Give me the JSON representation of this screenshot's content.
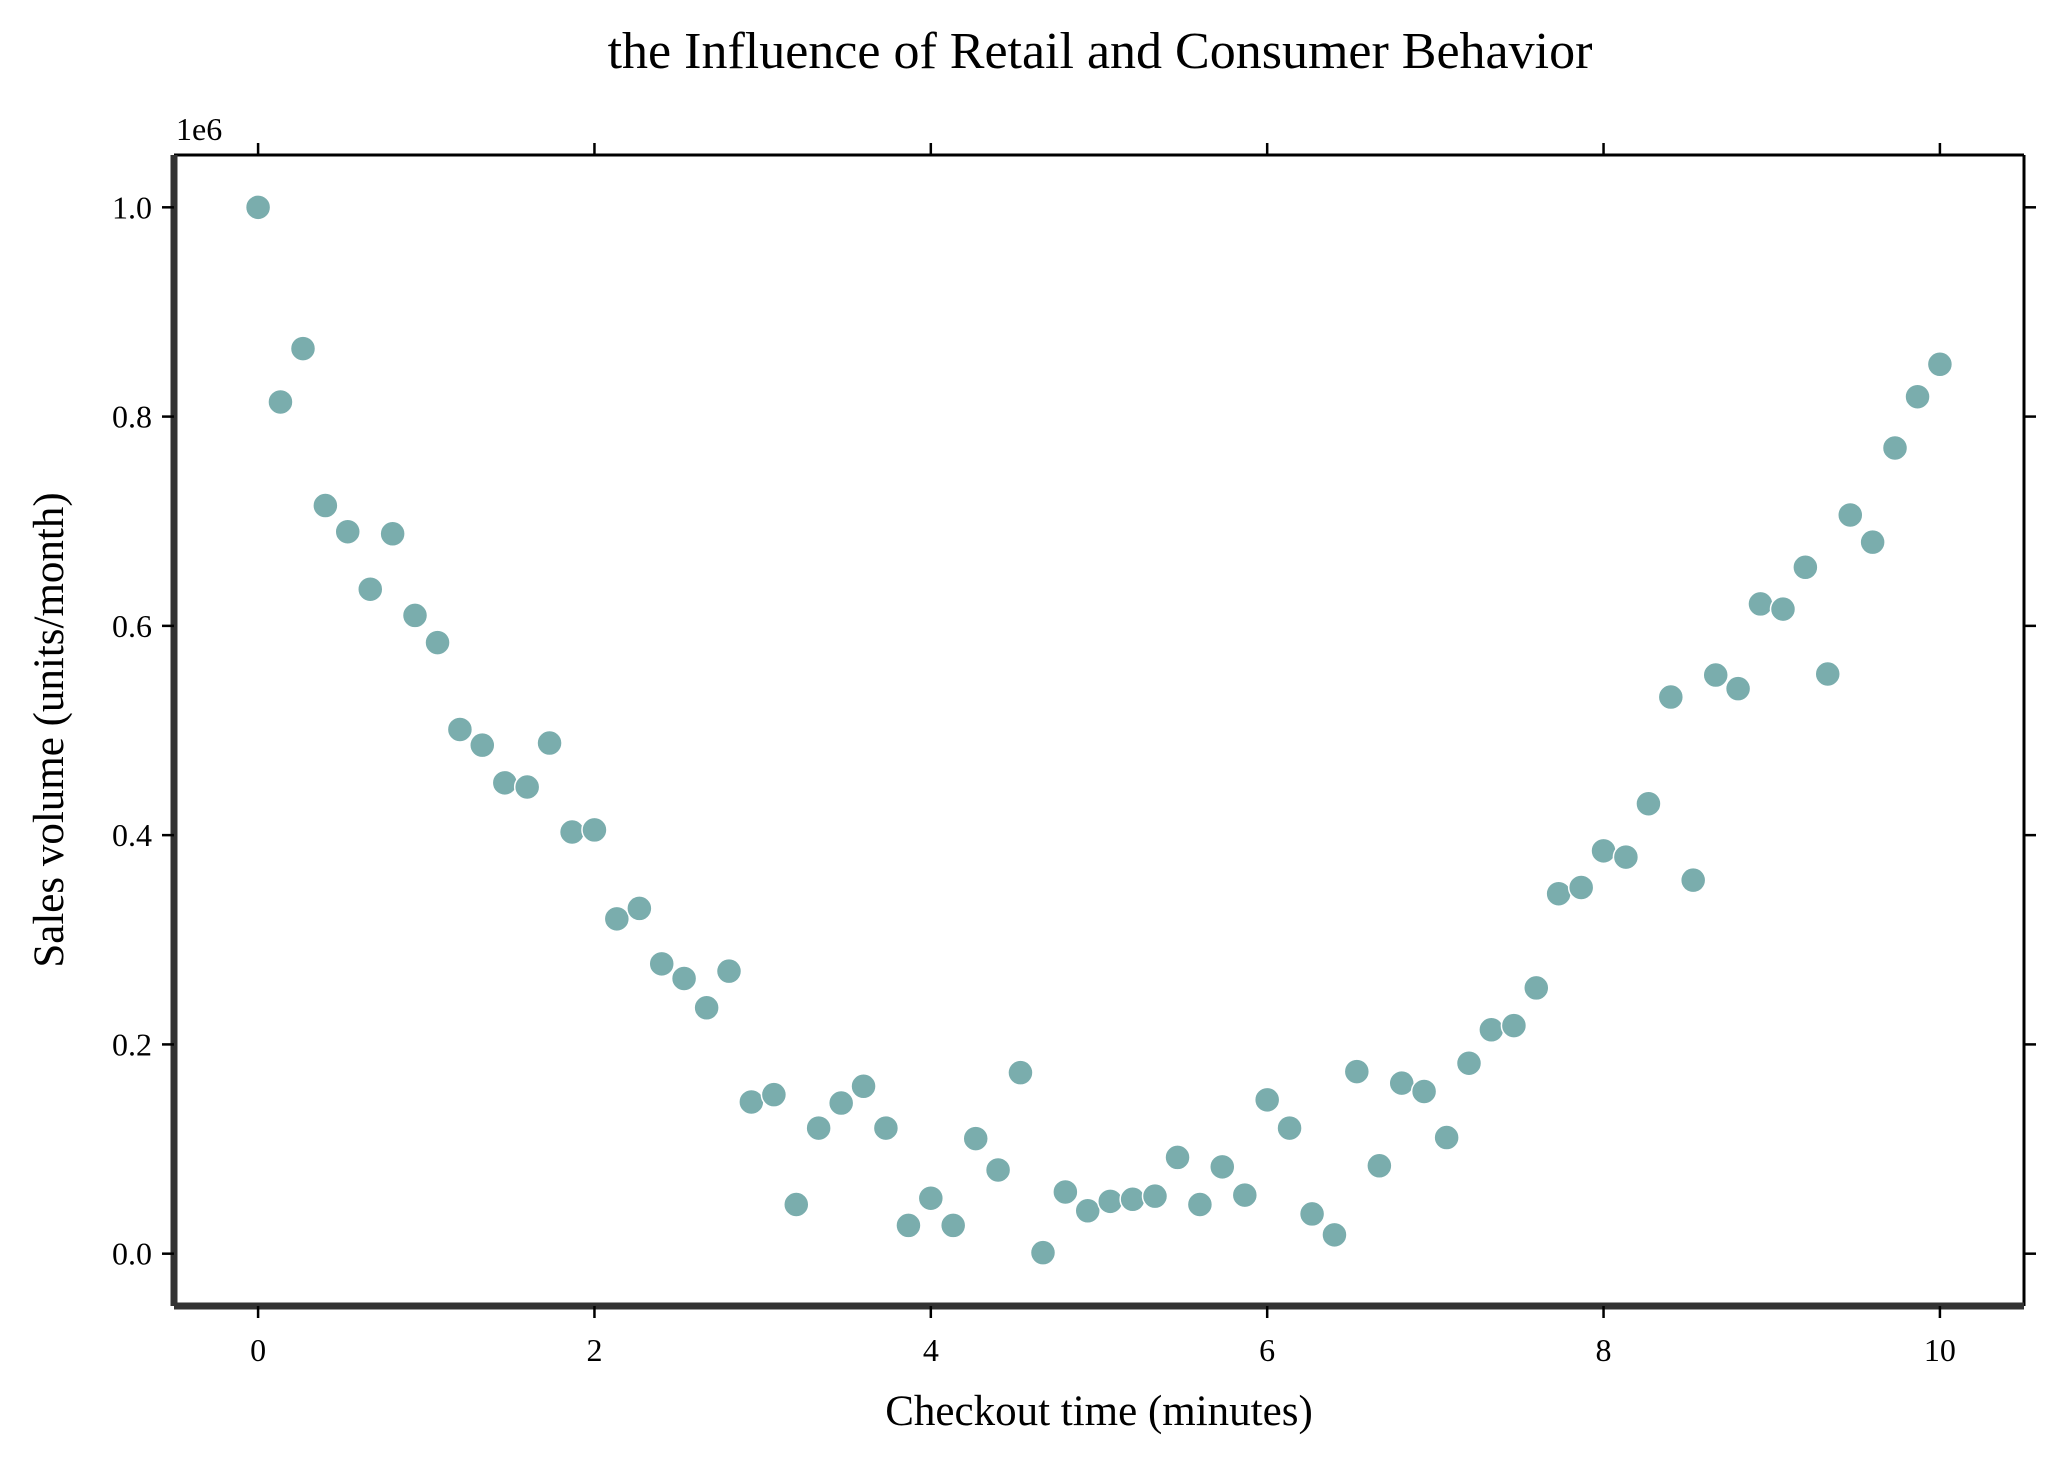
{
  "chart_data": {
    "type": "scatter",
    "title": "the Influence of Retail and Consumer Behavior",
    "xlabel": "Checkout time (minutes)",
    "ylabel": "Sales volume (units/month)",
    "y_offset_label": "1e6",
    "xlim": [
      -0.5,
      10.5
    ],
    "ylim": [
      -0.05,
      1.05
    ],
    "x_ticks": [
      0,
      2,
      4,
      6,
      8,
      10
    ],
    "x_tick_labels": [
      "0",
      "2",
      "4",
      "6",
      "8",
      "10"
    ],
    "y_ticks": [
      0.0,
      0.2,
      0.4,
      0.6,
      0.8,
      1.0
    ],
    "y_tick_labels": [
      "0.0",
      "0.2",
      "0.4",
      "0.6",
      "0.8",
      "1.0"
    ],
    "grid": false,
    "marker_color": "#7aadad",
    "x": [
      0.0,
      0.133,
      0.267,
      0.4,
      0.533,
      0.667,
      0.8,
      0.933,
      1.067,
      1.2,
      1.333,
      1.467,
      1.6,
      1.733,
      1.867,
      2.0,
      2.133,
      2.267,
      2.4,
      2.533,
      2.667,
      2.8,
      2.933,
      3.067,
      3.2,
      3.333,
      3.467,
      3.6,
      3.733,
      3.867,
      4.0,
      4.133,
      4.267,
      4.4,
      4.533,
      4.667,
      4.8,
      4.933,
      5.067,
      5.2,
      5.333,
      5.467,
      5.6,
      5.733,
      5.867,
      6.0,
      6.133,
      6.267,
      6.4,
      6.533,
      6.667,
      6.8,
      6.933,
      7.067,
      7.2,
      7.333,
      7.467,
      7.6,
      7.733,
      7.867,
      8.0,
      8.133,
      8.267,
      8.4,
      8.533,
      8.667,
      8.8,
      8.933,
      9.067,
      9.2,
      9.333,
      9.467,
      9.6,
      9.733,
      9.867,
      10.0
    ],
    "y": [
      1.0,
      0.814,
      0.865,
      0.715,
      0.69,
      0.635,
      0.688,
      0.61,
      0.584,
      0.501,
      0.486,
      0.45,
      0.446,
      0.488,
      0.403,
      0.405,
      0.32,
      0.33,
      0.277,
      0.263,
      0.235,
      0.27,
      0.145,
      0.152,
      0.047,
      0.12,
      0.144,
      0.16,
      0.12,
      0.027,
      0.053,
      0.027,
      0.11,
      0.08,
      0.173,
      0.001,
      0.059,
      0.041,
      0.05,
      0.052,
      0.055,
      0.092,
      0.047,
      0.083,
      0.056,
      0.147,
      0.12,
      0.038,
      0.018,
      0.174,
      0.084,
      0.163,
      0.155,
      0.111,
      0.182,
      0.214,
      0.218,
      0.254,
      0.344,
      0.35,
      0.385,
      0.379,
      0.43,
      0.532,
      0.357,
      0.553,
      0.54,
      0.621,
      0.616,
      0.656,
      0.554,
      0.706,
      0.68,
      0.77,
      0.819,
      0.85
    ]
  }
}
